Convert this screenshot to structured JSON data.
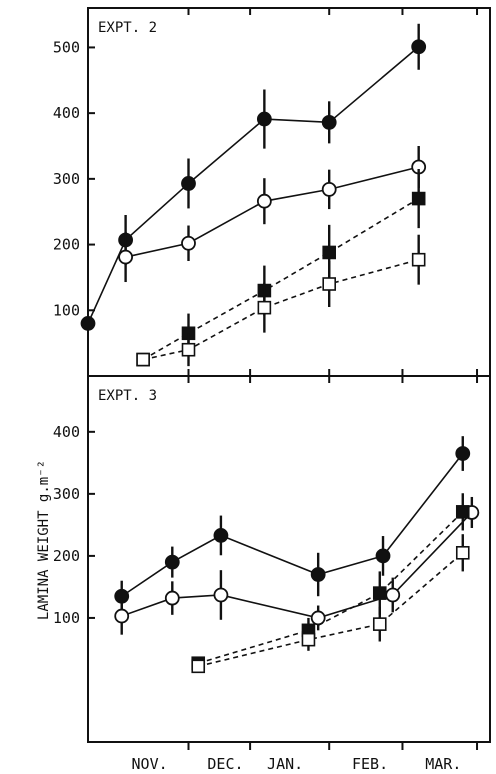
{
  "chart_data": [
    {
      "type": "line",
      "title": "EXPT. 2",
      "ylim": [
        0,
        560
      ],
      "yticks": [
        100,
        200,
        300,
        400,
        500
      ],
      "series": [
        {
          "marker": "filled-circle",
          "line": "solid",
          "points": [
            {
              "x": 0.0,
              "y": 80,
              "err": 0
            },
            {
              "x": 0.58,
              "y": 207,
              "err": 38
            },
            {
              "x": 1.55,
              "y": 293,
              "err": 38
            },
            {
              "x": 2.72,
              "y": 391,
              "err": 45
            },
            {
              "x": 3.72,
              "y": 386,
              "err": 32
            },
            {
              "x": 5.1,
              "y": 501,
              "err": 35
            }
          ]
        },
        {
          "marker": "open-circle",
          "line": "solid",
          "points": [
            {
              "x": 0.58,
              "y": 181,
              "err": 38
            },
            {
              "x": 1.55,
              "y": 202,
              "err": 27
            },
            {
              "x": 2.72,
              "y": 266,
              "err": 35
            },
            {
              "x": 3.72,
              "y": 284,
              "err": 30
            },
            {
              "x": 5.1,
              "y": 318,
              "err": 32
            }
          ]
        },
        {
          "marker": "filled-square",
          "line": "dashed",
          "points": [
            {
              "x": 0.85,
              "y": 25,
              "err": 0
            },
            {
              "x": 1.55,
              "y": 65,
              "err": 30
            },
            {
              "x": 2.72,
              "y": 130,
              "err": 38
            },
            {
              "x": 3.72,
              "y": 188,
              "err": 42
            },
            {
              "x": 5.1,
              "y": 270,
              "err": 45
            }
          ]
        },
        {
          "marker": "open-square",
          "line": "dashed",
          "points": [
            {
              "x": 0.85,
              "y": 25,
              "err": 0
            },
            {
              "x": 1.55,
              "y": 40,
              "err": 25
            },
            {
              "x": 2.72,
              "y": 104,
              "err": 38
            },
            {
              "x": 3.72,
              "y": 140,
              "err": 35
            },
            {
              "x": 5.1,
              "y": 177,
              "err": 38
            }
          ]
        }
      ]
    },
    {
      "type": "line",
      "title": "EXPT. 3",
      "ylim": [
        -100,
        490
      ],
      "yticks": [
        100,
        200,
        300,
        400
      ],
      "series": [
        {
          "marker": "filled-circle",
          "line": "solid",
          "points": [
            {
              "x": 0.52,
              "y": 135,
              "err": 25
            },
            {
              "x": 1.3,
              "y": 190,
              "err": 25
            },
            {
              "x": 2.05,
              "y": 233,
              "err": 32
            },
            {
              "x": 3.55,
              "y": 170,
              "err": 35
            },
            {
              "x": 4.55,
              "y": 200,
              "err": 32
            },
            {
              "x": 5.78,
              "y": 365,
              "err": 28
            }
          ]
        },
        {
          "marker": "open-circle",
          "line": "solid",
          "points": [
            {
              "x": 0.52,
              "y": 103,
              "err": 30
            },
            {
              "x": 1.3,
              "y": 132,
              "err": 27
            },
            {
              "x": 2.05,
              "y": 137,
              "err": 40
            },
            {
              "x": 3.55,
              "y": 100,
              "err": 20
            },
            {
              "x": 4.7,
              "y": 137,
              "err": 28
            },
            {
              "x": 5.92,
              "y": 270,
              "err": 25
            }
          ]
        },
        {
          "marker": "filled-square",
          "line": "dashed",
          "points": [
            {
              "x": 1.7,
              "y": 27,
              "err": 0
            },
            {
              "x": 3.4,
              "y": 80,
              "err": 20
            },
            {
              "x": 4.5,
              "y": 140,
              "err": 35
            },
            {
              "x": 5.78,
              "y": 271,
              "err": 30
            }
          ]
        },
        {
          "marker": "open-square",
          "line": "dashed",
          "points": [
            {
              "x": 1.7,
              "y": 22,
              "err": 0
            },
            {
              "x": 3.4,
              "y": 65,
              "err": 18
            },
            {
              "x": 4.5,
              "y": 90,
              "err": 28
            },
            {
              "x": 5.78,
              "y": 205,
              "err": 30
            }
          ]
        }
      ]
    }
  ],
  "x_axis": {
    "range": [
      0,
      6.2
    ],
    "tick_labels": [
      {
        "label": "NOV.",
        "x": 0.95
      },
      {
        "label": "DEC.",
        "x": 2.12
      },
      {
        "label": "JAN.",
        "x": 3.04
      },
      {
        "label": "FEB.",
        "x": 4.35
      },
      {
        "label": "MAR.",
        "x": 5.48
      }
    ],
    "tick_marks": [
      1.55,
      2.5,
      3.72,
      4.85,
      6.0
    ]
  },
  "ylabel": "LAMINA  WEIGHT   g.m⁻²"
}
